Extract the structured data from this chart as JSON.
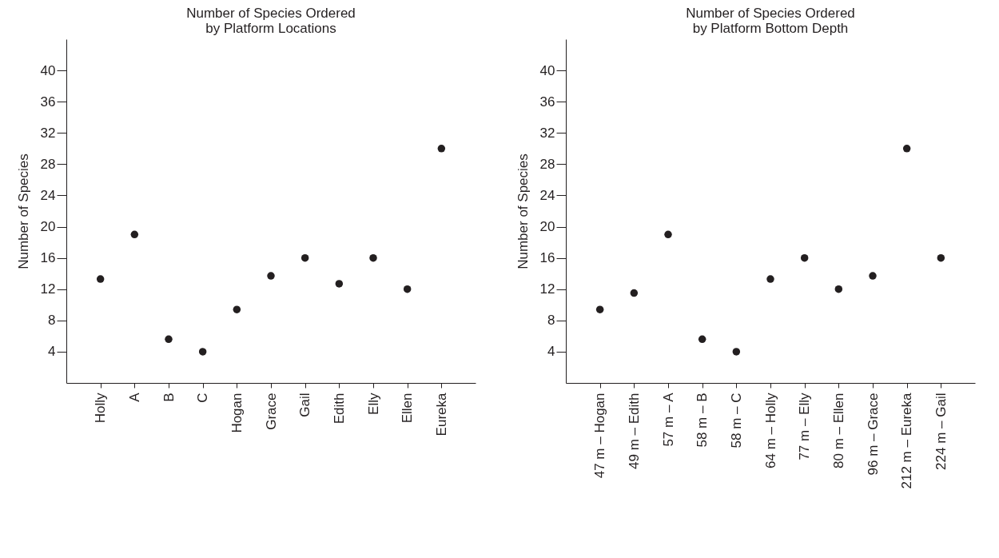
{
  "chart_data": [
    {
      "type": "scatter",
      "title": "Number of Species Ordered\nby Platform Locations",
      "ylabel": "Number of Species",
      "categories": [
        "Holly",
        "A",
        "B",
        "C",
        "Hogan",
        "Grace",
        "Gail",
        "Edith",
        "Elly",
        "Ellen",
        "Eureka"
      ],
      "values": [
        13.3,
        19,
        5.6,
        4,
        9.4,
        13.7,
        16,
        12.7,
        16,
        12,
        30
      ],
      "color": "#231f20",
      "marker": "circle",
      "ylim": [
        0,
        44
      ],
      "yticks": [
        4,
        8,
        12,
        16,
        20,
        24,
        28,
        32,
        36,
        40
      ],
      "grid": false
    },
    {
      "type": "scatter",
      "title": "Number of Species Ordered\nby Platform Bottom Depth",
      "ylabel": "Number of Species",
      "categories": [
        "47 m – Hogan",
        "49 m – Edith",
        "57 m – A",
        "58 m – B",
        "58 m – C",
        "64 m – Holly",
        "77 m – Elly",
        "80 m – Ellen",
        "96 m – Grace",
        "212 m – Eureka",
        "224 m – Gail"
      ],
      "values": [
        9.4,
        11.5,
        19,
        5.6,
        4,
        13.3,
        16,
        12,
        13.7,
        30,
        16
      ],
      "color": "#231f20",
      "marker": "circle",
      "ylim": [
        0,
        44
      ],
      "yticks": [
        4,
        8,
        12,
        16,
        20,
        24,
        28,
        32,
        36,
        40
      ],
      "grid": false
    }
  ]
}
